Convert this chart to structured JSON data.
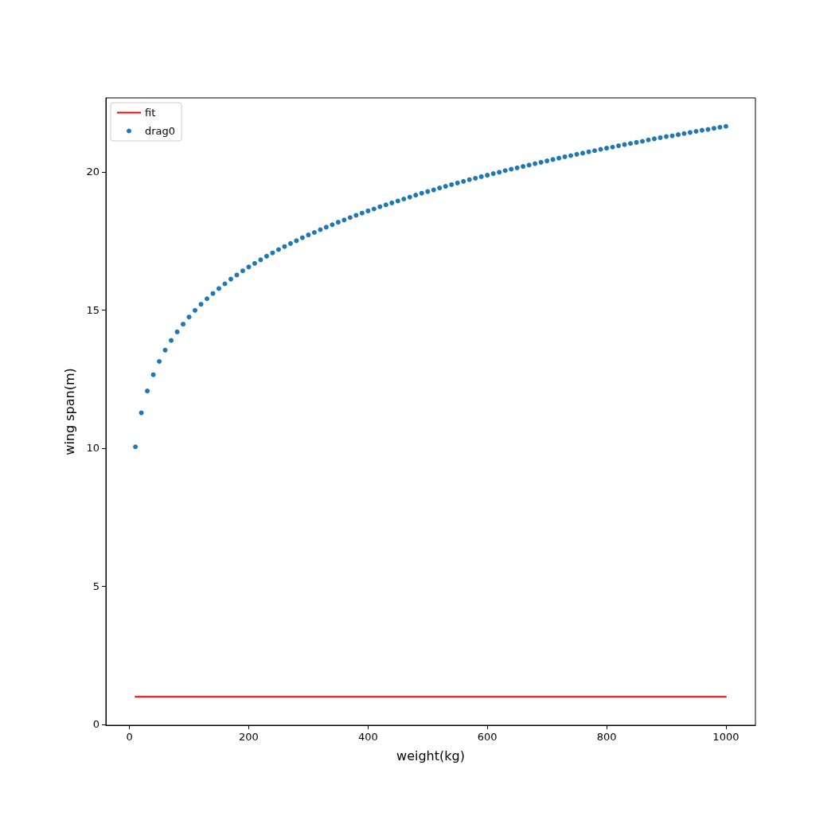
{
  "chart_data": {
    "type": "scatter",
    "xlabel": "weight(kg)",
    "ylabel": "wing span(m)",
    "xlim": [
      -39.5,
      1049.5
    ],
    "xticks": [
      0,
      200,
      400,
      600,
      800,
      1000
    ],
    "ylim": [
      -0.03,
      22.68
    ],
    "yticks": [
      0,
      5,
      10,
      15,
      20
    ],
    "legend": "top left",
    "series": [
      {
        "name": "fit",
        "type": "line",
        "color": "#ff0000",
        "marker": "none",
        "x": [
          10,
          1000
        ],
        "values": [
          1,
          1
        ]
      },
      {
        "name": "drag0",
        "color": "#1f77b4",
        "marker": "circle",
        "x": [
          10,
          20,
          30,
          40,
          50,
          60,
          70,
          80,
          90,
          100,
          110,
          120,
          130,
          140,
          150,
          160,
          170,
          180,
          190,
          200,
          210,
          220,
          230,
          240,
          250,
          260,
          270,
          280,
          290,
          300,
          310,
          320,
          330,
          340,
          350,
          360,
          370,
          380,
          390,
          400,
          410,
          420,
          430,
          440,
          450,
          460,
          470,
          480,
          490,
          500,
          510,
          520,
          530,
          540,
          550,
          560,
          570,
          580,
          590,
          600,
          610,
          620,
          630,
          640,
          650,
          660,
          670,
          680,
          690,
          700,
          710,
          720,
          730,
          740,
          750,
          760,
          770,
          780,
          790,
          800,
          810,
          820,
          830,
          840,
          850,
          860,
          870,
          880,
          890,
          900,
          910,
          920,
          930,
          940,
          950,
          960,
          970,
          980,
          990,
          1000
        ],
        "values": [
          10.05,
          11.28,
          12.07,
          12.66,
          13.14,
          13.55,
          13.9,
          14.21,
          14.49,
          14.75,
          14.99,
          15.21,
          15.41,
          15.6,
          15.78,
          15.95,
          16.12,
          16.27,
          16.42,
          16.56,
          16.69,
          16.82,
          16.95,
          17.07,
          17.19,
          17.3,
          17.41,
          17.51,
          17.62,
          17.72,
          17.81,
          17.91,
          18.0,
          18.09,
          18.18,
          18.26,
          18.35,
          18.43,
          18.51,
          18.59,
          18.66,
          18.74,
          18.81,
          18.88,
          18.95,
          19.02,
          19.09,
          19.16,
          19.23,
          19.29,
          19.35,
          19.42,
          19.48,
          19.54,
          19.6,
          19.66,
          19.72,
          19.77,
          19.83,
          19.88,
          19.94,
          19.99,
          20.05,
          20.1,
          20.15,
          20.2,
          20.25,
          20.3,
          20.35,
          20.4,
          20.45,
          20.5,
          20.55,
          20.59,
          20.64,
          20.68,
          20.73,
          20.77,
          20.82,
          20.86,
          20.9,
          20.95,
          20.99,
          21.03,
          21.07,
          21.11,
          21.16,
          21.2,
          21.24,
          21.28,
          21.31,
          21.35,
          21.39,
          21.43,
          21.47,
          21.51,
          21.54,
          21.58,
          21.62,
          21.65
        ]
      }
    ]
  }
}
